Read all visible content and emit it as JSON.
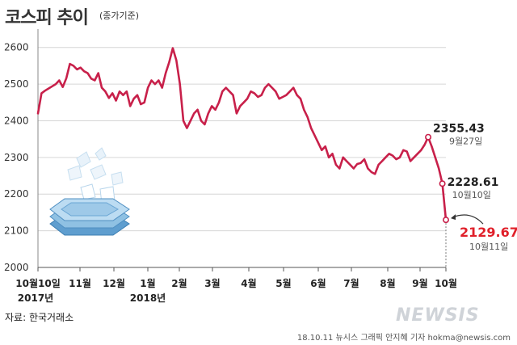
{
  "header": {
    "title": "코스피 추이",
    "subtitle": "(종가기준)"
  },
  "footer": {
    "source": "자료: 한국거래소",
    "credit": "18.10.11 뉴시스 그래픽 안지혜 기자 hokma@newsis.com",
    "watermark": "NEWSIS"
  },
  "colors": {
    "line": "#c8204a",
    "grid": "#d6d6d6",
    "highlight_text": "#e0202a",
    "icon_blue": "#8fc1e3"
  },
  "chart_data": {
    "type": "line",
    "ylim": [
      2000,
      2650
    ],
    "yticks": [
      "2000",
      "2100",
      "2200",
      "2300",
      "2400",
      "2500",
      "2600"
    ],
    "xticks": [
      "10월10일",
      "11월",
      "12월",
      "1월",
      "2월",
      "3월",
      "4월",
      "5월",
      "6월",
      "7월",
      "8월",
      "9월",
      "10월"
    ],
    "year_labels": [
      "2017년",
      "2018년"
    ],
    "series": [
      {
        "values": [
          2420,
          2475,
          2482,
          2488,
          2494,
          2500,
          2510,
          2492,
          2516,
          2555,
          2550,
          2540,
          2545,
          2535,
          2530,
          2515,
          2510,
          2530,
          2490,
          2480,
          2462,
          2475,
          2455,
          2480,
          2470,
          2480,
          2440,
          2460,
          2470,
          2445,
          2450,
          2490,
          2510,
          2500,
          2510,
          2490,
          2530,
          2560,
          2598,
          2565,
          2500,
          2400,
          2380,
          2400,
          2420,
          2430,
          2400,
          2390,
          2420,
          2440,
          2430,
          2450,
          2480,
          2490,
          2480,
          2470,
          2420,
          2440,
          2450,
          2460,
          2480,
          2475,
          2465,
          2470,
          2490,
          2500,
          2490,
          2480,
          2460,
          2465,
          2470,
          2480,
          2490,
          2470,
          2460,
          2430,
          2410,
          2380,
          2360,
          2340,
          2320,
          2330,
          2300,
          2310,
          2280,
          2270,
          2300,
          2290,
          2280,
          2270,
          2282,
          2285,
          2295,
          2270,
          2260,
          2255,
          2280,
          2290,
          2300,
          2310,
          2305,
          2295,
          2300,
          2320,
          2316,
          2290,
          2300,
          2310,
          2320,
          2335,
          2355.43,
          2330,
          2300,
          2270,
          2228.61,
          2129.67
        ],
        "color": "#c8204a"
      }
    ],
    "annotations": [
      {
        "value": "2355.43",
        "date": "9월27일"
      },
      {
        "value": "2228.61",
        "date": "10월10일"
      },
      {
        "value": "2129.67",
        "date": "10월11일"
      }
    ],
    "grid": true
  }
}
